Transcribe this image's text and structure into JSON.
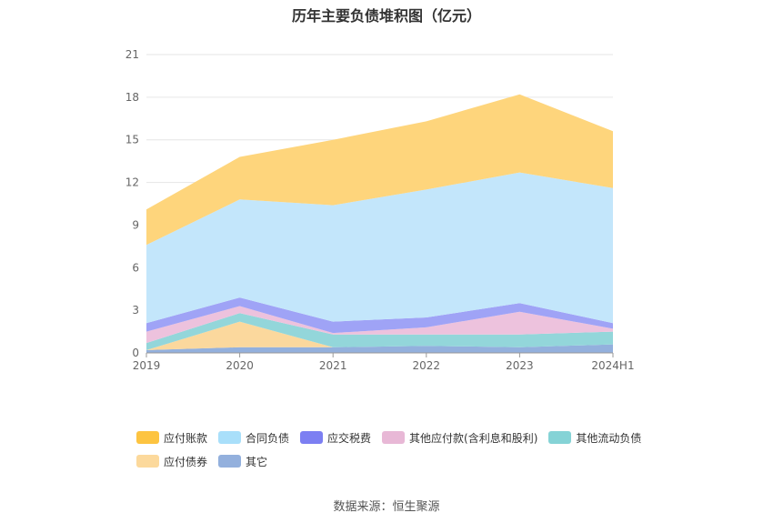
{
  "page": {
    "source": "数据来源：恒生聚源"
  },
  "chart_data": {
    "type": "area",
    "stacked": true,
    "title": "历年主要负债堆积图（亿元）",
    "categories": [
      "2019",
      "2020",
      "2021",
      "2022",
      "2023",
      "2024H1"
    ],
    "ylim": [
      0,
      21
    ],
    "yticks": [
      0,
      3,
      6,
      9,
      12,
      15,
      18,
      21
    ],
    "grid": true,
    "legend_position": "bottom",
    "series": [
      {
        "name": "其它",
        "color": "#93b0dd",
        "values": [
          0.2,
          0.4,
          0.4,
          0.5,
          0.4,
          0.6
        ]
      },
      {
        "name": "应付债券",
        "color": "#fbd89d",
        "values": [
          0.0,
          1.8,
          0.0,
          0.0,
          0.0,
          0.0
        ]
      },
      {
        "name": "其他流动负债",
        "color": "#93d6da",
        "values": [
          0.5,
          0.6,
          0.9,
          0.8,
          0.9,
          0.9
        ]
      },
      {
        "name": "其他应付款(含利息和股利)",
        "color": "#edc2dd",
        "values": [
          0.8,
          0.5,
          0.1,
          0.5,
          1.6,
          0.2
        ]
      },
      {
        "name": "应交税费",
        "color": "#9fa3f6",
        "values": [
          0.6,
          0.6,
          0.8,
          0.7,
          0.6,
          0.4
        ]
      },
      {
        "name": "合同负债",
        "color": "#c3e6fb",
        "values": [
          5.5,
          6.9,
          8.2,
          9.0,
          9.2,
          9.5
        ]
      },
      {
        "name": "应付账款",
        "color": "#fed57c",
        "values": [
          2.5,
          3.0,
          4.6,
          4.8,
          5.5,
          4.0
        ]
      }
    ],
    "legend": [
      {
        "name": "应付账款",
        "color": "#fdc441"
      },
      {
        "name": "合同负债",
        "color": "#a9dffa"
      },
      {
        "name": "应交税费",
        "color": "#7c7ff2"
      },
      {
        "name": "其他应付款(含利息和股利)",
        "color": "#e8b8d6"
      },
      {
        "name": "其他流动负债",
        "color": "#85d3d6"
      },
      {
        "name": "应付债券",
        "color": "#fcd99c"
      },
      {
        "name": "其它",
        "color": "#93b0dd"
      }
    ]
  }
}
